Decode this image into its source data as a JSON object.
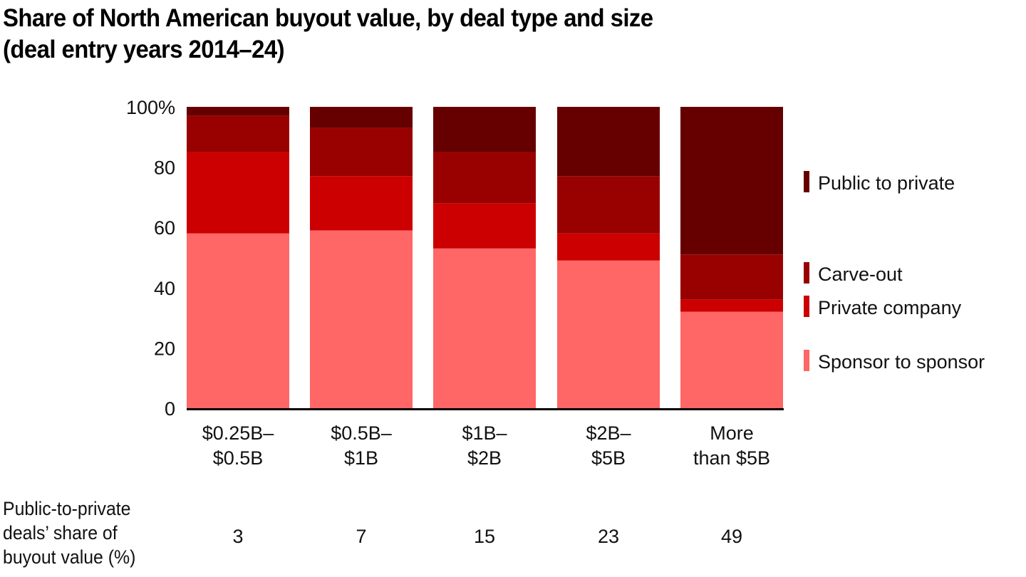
{
  "title": {
    "line1": "Share of North American buyout value, by deal type and size",
    "line2": "(deal entry years 2014–24)"
  },
  "chart_data": {
    "type": "bar",
    "stacked": true,
    "title": "Share of North American buyout value, by deal type and size (deal entry years 2014–24)",
    "xlabel": "",
    "ylabel": "",
    "ylim": [
      0,
      100
    ],
    "yticks": [
      "0",
      "20",
      "40",
      "60",
      "80",
      "100%"
    ],
    "ytick_values": [
      0,
      20,
      40,
      60,
      80,
      100
    ],
    "grid": false,
    "legend_position": "right",
    "categories": [
      [
        "$0.25B–",
        "$0.5B"
      ],
      [
        "$0.5B–",
        "$1B"
      ],
      [
        "$1B–",
        "$2B"
      ],
      [
        "$2B–",
        "$5B"
      ],
      [
        "More",
        "than $5B"
      ]
    ],
    "series": [
      {
        "name": "Sponsor to sponsor",
        "color": "#FF6666",
        "values": [
          58,
          59,
          53,
          49,
          32
        ]
      },
      {
        "name": "Private company",
        "color": "#CC0000",
        "values": [
          27,
          18,
          15,
          9,
          4
        ]
      },
      {
        "name": "Carve-out",
        "color": "#990000",
        "values": [
          12,
          16,
          17,
          19,
          15
        ]
      },
      {
        "name": "Public to private",
        "color": "#660000",
        "values": [
          3,
          7,
          15,
          23,
          49
        ]
      }
    ],
    "legend": [
      {
        "name": "Public to private",
        "color": "#660000"
      },
      {
        "name": "Carve-out",
        "color": "#990000"
      },
      {
        "name": "Private company",
        "color": "#CC0000"
      },
      {
        "name": "Sponsor to sponsor",
        "color": "#FF6666"
      }
    ],
    "table_row": {
      "label": [
        "Public-to-private",
        "deals’ share of",
        "buyout value (%)"
      ],
      "values": [
        "3",
        "7",
        "15",
        "23",
        "49"
      ]
    }
  }
}
